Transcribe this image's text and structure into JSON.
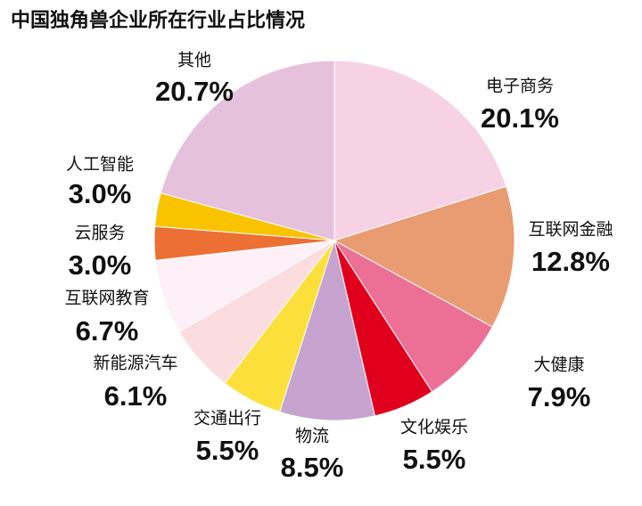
{
  "chart_data": {
    "type": "pie",
    "title": "中国独角兽企业所在行业占比情况",
    "categories": [
      "电子商务",
      "互联网金融",
      "大健康",
      "文化娱乐",
      "物流",
      "交通出行",
      "新能源汽车",
      "互联网教育",
      "云服务",
      "人工智能",
      "其他"
    ],
    "values": [
      20.1,
      12.8,
      7.9,
      5.5,
      8.5,
      5.5,
      6.1,
      6.7,
      3,
      3,
      20.7
    ],
    "value_labels": [
      "20.1%",
      "12.8%",
      "7.9%",
      "5.5%",
      "8.5%",
      "5.5%",
      "6.1%",
      "6.7%",
      "3.0%",
      "3.0%",
      "20.7%"
    ],
    "colors": [
      "#f7d2e4",
      "#e99b72",
      "#ec7096",
      "#e0001e",
      "#c6a4cf",
      "#fbe03c",
      "#fbdde0",
      "#fdf0f7",
      "#ec6f34",
      "#f9c300",
      "#e6c1db"
    ]
  }
}
